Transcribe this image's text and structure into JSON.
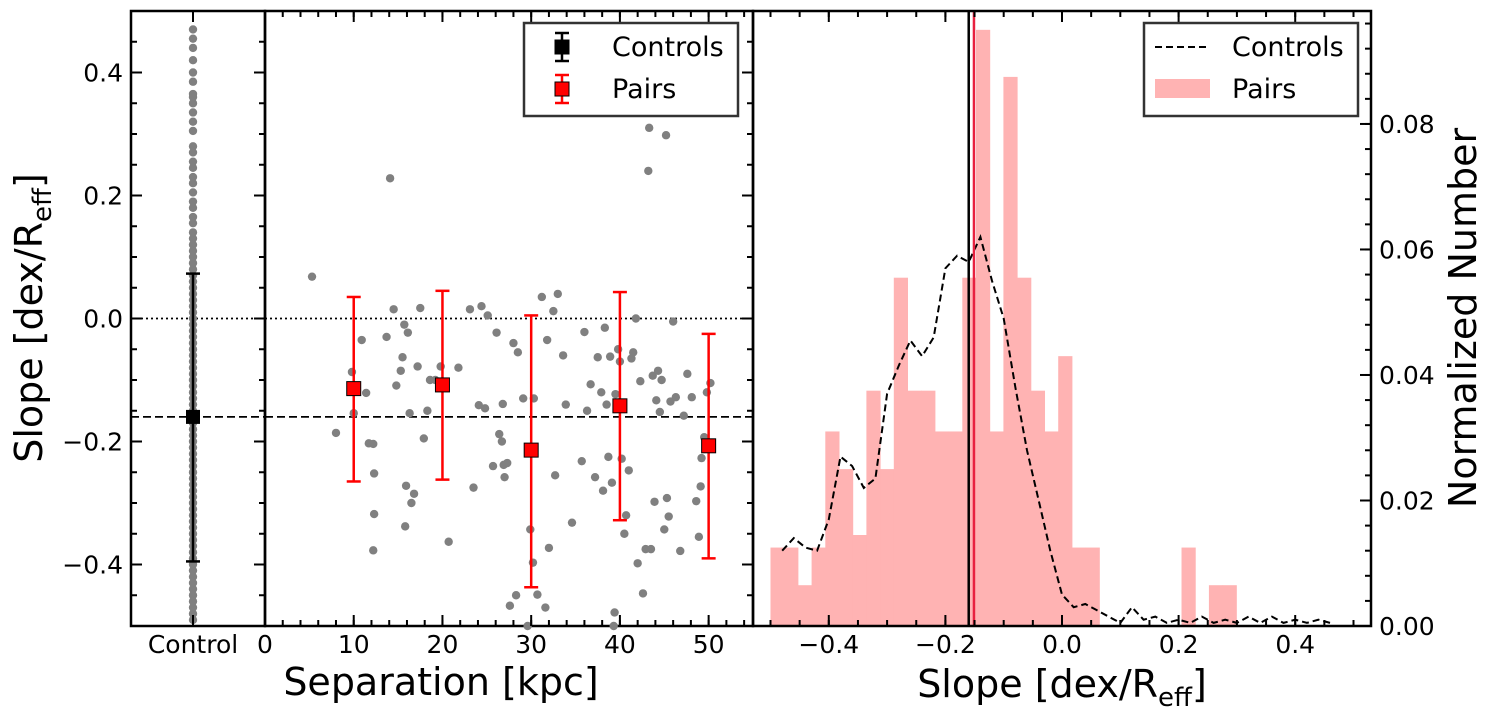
{
  "chart_data": [
    {
      "type": "scatter",
      "panel": "control",
      "ylabel": "Slope [dex/R",
      "ylabel_sub": "eff",
      "ylabel_end": "]",
      "xtick_labels": [
        "Control"
      ],
      "ylim": [
        -0.5,
        0.5
      ],
      "yticks": [
        -0.4,
        -0.2,
        0.0,
        0.2,
        0.4
      ],
      "ytick_labels": [
        "−0.4",
        "−0.2",
        "0.0",
        "0.2",
        "0.4"
      ],
      "reference_lines": [
        {
          "y": 0.0,
          "style": "dotted"
        },
        {
          "y": -0.16,
          "style": "dashed"
        }
      ],
      "points": {
        "x": 0,
        "y": [
          0.47,
          0.455,
          0.44,
          0.42,
          0.4,
          0.385,
          0.365,
          0.36,
          0.35,
          0.335,
          0.32,
          0.305,
          0.28,
          0.27,
          0.255,
          0.245,
          0.23,
          0.22,
          0.205,
          0.19,
          0.18,
          0.165,
          0.155,
          0.14,
          0.13,
          0.12,
          0.11,
          0.1,
          0.09,
          0.08,
          0.07,
          0.06,
          0.05,
          0.04,
          0.03,
          0.02,
          0.01,
          0.0,
          -0.01,
          -0.02,
          -0.03,
          -0.04,
          -0.05,
          -0.06,
          -0.07,
          -0.08,
          -0.09,
          -0.1,
          -0.11,
          -0.12,
          -0.13,
          -0.14,
          -0.15,
          -0.16,
          -0.17,
          -0.18,
          -0.19,
          -0.2,
          -0.21,
          -0.22,
          -0.23,
          -0.24,
          -0.25,
          -0.26,
          -0.27,
          -0.28,
          -0.29,
          -0.3,
          -0.31,
          -0.32,
          -0.33,
          -0.34,
          -0.35,
          -0.36,
          -0.37,
          -0.38,
          -0.39,
          -0.4,
          -0.41,
          -0.42,
          -0.43,
          -0.44,
          -0.45,
          -0.46,
          -0.47,
          -0.48,
          -0.49
        ]
      },
      "summary": {
        "name": "Controls",
        "x": 0,
        "y": -0.16,
        "yerr_low": -0.395,
        "yerr_high": 0.073,
        "color": "#000000"
      }
    },
    {
      "type": "scatter",
      "panel": "pairs",
      "xlabel": "Separation [kpc]",
      "xlim": [
        0,
        55
      ],
      "xticks": [
        0,
        10,
        20,
        30,
        40,
        50
      ],
      "xtick_labels": [
        "0",
        "10",
        "20",
        "30",
        "40",
        "50"
      ],
      "ylim": [
        -0.5,
        0.5
      ],
      "reference_lines": [
        {
          "y": 0.0,
          "style": "dotted"
        },
        {
          "y": -0.16,
          "style": "dashed"
        }
      ],
      "legend": {
        "position": "top-right",
        "entries": [
          "Controls",
          "Pairs"
        ]
      },
      "points": [
        [
          5.3,
          0.068
        ],
        [
          8,
          -0.186
        ],
        [
          9.8,
          -0.087
        ],
        [
          10,
          -0.154
        ],
        [
          10.9,
          -0.035
        ],
        [
          11.4,
          -0.121
        ],
        [
          11.7,
          -0.203
        ],
        [
          12.2,
          -0.204
        ],
        [
          12.3,
          -0.252
        ],
        [
          12.3,
          -0.318
        ],
        [
          12.2,
          -0.377
        ],
        [
          13.7,
          -0.03
        ],
        [
          14.1,
          0.228
        ],
        [
          14.5,
          0.015
        ],
        [
          14.8,
          -0.109
        ],
        [
          15.3,
          -0.085
        ],
        [
          15.5,
          -0.063
        ],
        [
          15.7,
          -0.01
        ],
        [
          15.9,
          -0.272
        ],
        [
          15.8,
          -0.338
        ],
        [
          16.1,
          -0.023
        ],
        [
          16.3,
          -0.154
        ],
        [
          16.5,
          -0.3
        ],
        [
          16.8,
          -0.285
        ],
        [
          17.2,
          -0.078
        ],
        [
          17.5,
          0.017
        ],
        [
          17.9,
          -0.195
        ],
        [
          18.3,
          -0.15
        ],
        [
          18.6,
          -0.1
        ],
        [
          19.2,
          -0.1
        ],
        [
          19.8,
          -0.078
        ],
        [
          20.7,
          -0.363
        ],
        [
          21.8,
          -0.08
        ],
        [
          23.1,
          0.015
        ],
        [
          23.5,
          -0.275
        ],
        [
          24.1,
          -0.141
        ],
        [
          24.4,
          0.02
        ],
        [
          24.8,
          -0.146
        ],
        [
          25.1,
          0.005
        ],
        [
          25.7,
          -0.24
        ],
        [
          26.1,
          -0.023
        ],
        [
          26.4,
          -0.188
        ],
        [
          26.7,
          -0.2
        ],
        [
          26.8,
          -0.139
        ],
        [
          26.9,
          -0.238
        ],
        [
          27,
          -0.258
        ],
        [
          27.3,
          -0.235
        ],
        [
          27.6,
          -0.467
        ],
        [
          28,
          -0.04
        ],
        [
          28.3,
          -0.45
        ],
        [
          28.5,
          -0.055
        ],
        [
          29.1,
          -0.13
        ],
        [
          29.6,
          -0.5
        ],
        [
          29.9,
          -0.343
        ],
        [
          30.2,
          -0.397
        ],
        [
          30.3,
          -0.13
        ],
        [
          30.7,
          -0.449
        ],
        [
          31.2,
          0.035
        ],
        [
          31.6,
          -0.47
        ],
        [
          31.8,
          -0.035
        ],
        [
          32,
          -0.373
        ],
        [
          32.5,
          0.012
        ],
        [
          32.7,
          -0.255
        ],
        [
          33,
          0.04
        ],
        [
          33.6,
          -0.06
        ],
        [
          33.9,
          -0.14
        ],
        [
          34.6,
          -0.332
        ],
        [
          35.7,
          -0.232
        ],
        [
          36,
          -0.022
        ],
        [
          36.3,
          -0.15
        ],
        [
          36.7,
          -0.107
        ],
        [
          37.2,
          -0.258
        ],
        [
          37.5,
          -0.063
        ],
        [
          37.9,
          -0.12
        ],
        [
          38.1,
          -0.28
        ],
        [
          38.3,
          -0.015
        ],
        [
          38.5,
          -0.14
        ],
        [
          38.7,
          -0.225
        ],
        [
          38.9,
          -0.062
        ],
        [
          39.1,
          -0.267
        ],
        [
          39.3,
          -0.5
        ],
        [
          39.4,
          -0.478
        ],
        [
          39.5,
          -0.123
        ],
        [
          39.8,
          -0.05
        ],
        [
          40,
          -0.07
        ],
        [
          40.2,
          -0.228
        ],
        [
          40.5,
          -0.35
        ],
        [
          40.7,
          -0.32
        ],
        [
          41,
          -0.247
        ],
        [
          41.3,
          -0.065
        ],
        [
          41.5,
          -0.055
        ],
        [
          41.8,
          0.0
        ],
        [
          42,
          -0.398
        ],
        [
          42.3,
          -0.102
        ],
        [
          42.6,
          -0.447
        ],
        [
          42.9,
          -0.375
        ],
        [
          43.2,
          0.24
        ],
        [
          43.3,
          0.31
        ],
        [
          43.5,
          -0.375
        ],
        [
          43.7,
          -0.093
        ],
        [
          43.9,
          -0.298
        ],
        [
          44.1,
          -0.133
        ],
        [
          44.3,
          -0.085
        ],
        [
          44.5,
          -0.152
        ],
        [
          44.7,
          -0.1
        ],
        [
          45,
          -0.343
        ],
        [
          45.2,
          0.298
        ],
        [
          45.3,
          -0.292
        ],
        [
          45.5,
          -0.322
        ],
        [
          45.7,
          -0.135
        ],
        [
          46,
          -0.005
        ],
        [
          46.3,
          -0.128
        ],
        [
          46.8,
          -0.378
        ],
        [
          47.2,
          -0.158
        ],
        [
          47.6,
          -0.09
        ],
        [
          48.1,
          -0.128
        ],
        [
          48.6,
          -0.297
        ],
        [
          48.9,
          -0.355
        ],
        [
          49.1,
          -0.273
        ],
        [
          49.2,
          -0.227
        ],
        [
          49.5,
          -0.193
        ],
        [
          49.8,
          -0.12
        ],
        [
          50.2,
          -0.105
        ]
      ],
      "series": [
        {
          "name": "Pairs",
          "color": "#ff0000",
          "x": [
            10,
            20,
            30,
            40,
            50
          ],
          "y": [
            -0.114,
            -0.108,
            -0.214,
            -0.142,
            -0.207
          ],
          "yerr_low": [
            -0.265,
            -0.262,
            -0.437,
            -0.328,
            -0.39
          ],
          "yerr_high": [
            0.035,
            0.045,
            0.005,
            0.043,
            -0.025
          ]
        }
      ]
    },
    {
      "type": "bar",
      "panel": "histogram",
      "xlabel": "Slope [dex/R",
      "xlabel_sub": "eff",
      "xlabel_end": "]",
      "ylabel": "Normalized Number",
      "xlim": [
        -0.53,
        0.53
      ],
      "xticks": [
        -0.4,
        -0.2,
        0.0,
        0.2,
        0.4
      ],
      "xtick_labels": [
        "−0.4",
        "−0.2",
        "0.0",
        "0.2",
        "0.4"
      ],
      "ylim": [
        0,
        0.098
      ],
      "yticks": [
        0.0,
        0.02,
        0.04,
        0.06,
        0.08
      ],
      "ytick_labels": [
        "0.00",
        "0.02",
        "0.04",
        "0.06",
        "0.08"
      ],
      "legend": {
        "position": "top-right",
        "entries": [
          "Controls",
          "Pairs"
        ]
      },
      "bin_width": 0.0235,
      "bin_starts": [
        -0.5,
        -0.4765,
        -0.453,
        -0.4295,
        -0.406,
        -0.3825,
        -0.359,
        -0.3355,
        -0.312,
        -0.2885,
        -0.265,
        -0.2415,
        -0.218,
        -0.1945,
        -0.171,
        -0.1475,
        -0.124,
        -0.1005,
        -0.077,
        -0.0535,
        -0.03,
        -0.0065,
        0.017,
        0.0405,
        0.064,
        0.0875,
        0.111,
        0.1345,
        0.158,
        0.1815,
        0.205,
        0.2285,
        0.252,
        0.2755,
        0.299
      ],
      "series": [
        {
          "name": "Pairs",
          "color": "#ffb3b3",
          "values": [
            0.0125,
            0.0125,
            0.0065,
            0.0125,
            0.031,
            0.025,
            0.0145,
            0.0375,
            0.025,
            0.0555,
            0.0375,
            0.0375,
            0.031,
            0.031,
            0.0555,
            0.095,
            0.031,
            0.0875,
            0.0555,
            0.0375,
            0.031,
            0.043,
            0.0125,
            0.0125,
            0.0,
            0.0,
            0.0,
            0.0,
            0.0,
            0.0,
            0.0125,
            0.0,
            0.0065,
            0.0065,
            0.0
          ]
        },
        {
          "name": "Controls",
          "color": "#000000",
          "style": "dashed",
          "x": [
            -0.48,
            -0.46,
            -0.44,
            -0.42,
            -0.4,
            -0.38,
            -0.36,
            -0.34,
            -0.32,
            -0.3,
            -0.28,
            -0.26,
            -0.24,
            -0.22,
            -0.2,
            -0.18,
            -0.16,
            -0.14,
            -0.12,
            -0.1,
            -0.08,
            -0.06,
            -0.04,
            -0.02,
            0.0,
            0.02,
            0.04,
            0.06,
            0.08,
            0.1,
            0.12,
            0.14,
            0.16,
            0.18,
            0.2,
            0.22,
            0.24,
            0.26,
            0.28,
            0.3,
            0.32,
            0.34,
            0.36,
            0.38,
            0.4,
            0.42,
            0.44,
            0.46
          ],
          "y": [
            0.012,
            0.014,
            0.0125,
            0.012,
            0.017,
            0.027,
            0.0255,
            0.022,
            0.0235,
            0.037,
            0.0415,
            0.0455,
            0.043,
            0.046,
            0.057,
            0.059,
            0.058,
            0.062,
            0.055,
            0.049,
            0.038,
            0.028,
            0.02,
            0.012,
            0.005,
            0.003,
            0.0035,
            0.0025,
            0.0015,
            0.0005,
            0.003,
            0.001,
            0.0015,
            0.0005,
            0.001,
            0.0005,
            0.0015,
            0.0005,
            0.001,
            0.0005,
            0.0015,
            0.0005,
            0.0015,
            0.0005,
            0.001,
            0.0005,
            0.001,
            0.0005
          ]
        }
      ],
      "vertical_lines": [
        {
          "name": "Controls",
          "x": -0.16,
          "color": "#000000"
        },
        {
          "name": "Pairs",
          "x": -0.151,
          "color": "#e8213f"
        }
      ]
    }
  ]
}
